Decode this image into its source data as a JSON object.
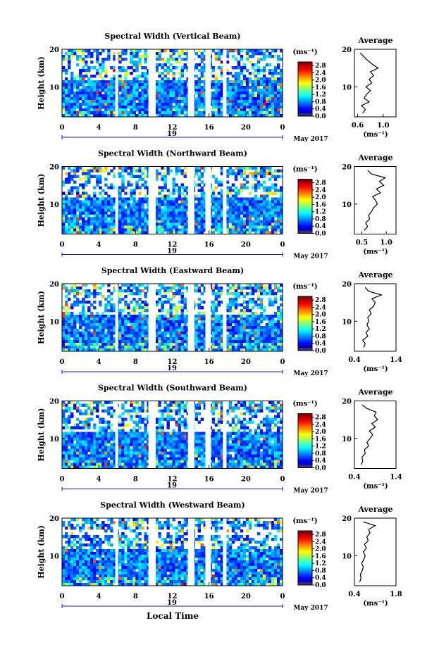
{
  "figure": {
    "ylabel": "Height (km)",
    "xlabel": "Local Time",
    "date_label": "May 2017",
    "colorbar_unit": "(ms⁻¹)",
    "avg_title": "Average",
    "avg_xlabel": "(ms⁻¹)",
    "day_label": "19"
  },
  "chart_data": [
    {
      "type": "heatmap",
      "title": "Spectral Width (Vertical Beam)",
      "x_ticks": [
        "0",
        "4",
        "8",
        "12",
        "16",
        "20",
        "0"
      ],
      "y_ticks": [
        "20",
        "10"
      ],
      "xlim": [
        0,
        24
      ],
      "ylim": [
        2,
        20
      ],
      "colorbar_ticks": [
        "2.8",
        "2.4",
        "2.0",
        "1.6",
        "1.2",
        "0.8",
        "0.4",
        "0.0"
      ],
      "colorbar_range": [
        0,
        3.0
      ],
      "gaps_hours": [
        [
          5.8,
          6.1
        ],
        [
          9.4,
          10.2
        ],
        [
          13.7,
          14.4
        ],
        [
          15.6,
          16.2
        ],
        [
          17.5,
          17.9
        ]
      ],
      "avg_profile": {
        "type": "line",
        "x_ticks": [
          "0.6",
          "1.0"
        ],
        "xlim": [
          0.55,
          1.2
        ],
        "heights": [
          3,
          4,
          5,
          6,
          7,
          8,
          9,
          10,
          11,
          12,
          13,
          14,
          15,
          16,
          17,
          18,
          19
        ],
        "values": [
          0.68,
          0.72,
          0.66,
          0.78,
          0.7,
          0.74,
          0.8,
          0.73,
          0.82,
          0.78,
          0.85,
          0.8,
          0.92,
          0.83,
          0.76,
          0.7,
          0.64
        ]
      }
    },
    {
      "type": "heatmap",
      "title": "Spectral Width (Northward Beam)",
      "x_ticks": [
        "0",
        "4",
        "8",
        "12",
        "16",
        "20",
        "0"
      ],
      "y_ticks": [
        "20",
        "10"
      ],
      "xlim": [
        0,
        24
      ],
      "ylim": [
        2,
        20
      ],
      "colorbar_ticks": [
        "2.8",
        "2.4",
        "2.0",
        "1.6",
        "1.2",
        "0.8",
        "0.4",
        "0.0"
      ],
      "colorbar_range": [
        0,
        3.0
      ],
      "gaps_hours": [
        [
          5.8,
          6.1
        ],
        [
          9.4,
          10.2
        ],
        [
          13.7,
          14.4
        ],
        [
          15.6,
          16.2
        ],
        [
          17.5,
          17.9
        ]
      ],
      "avg_profile": {
        "type": "line",
        "x_ticks": [
          "0.5",
          "1.0"
        ],
        "xlim": [
          0.35,
          1.2
        ],
        "heights": [
          3,
          4,
          5,
          6,
          7,
          8,
          9,
          10,
          11,
          12,
          13,
          14,
          15,
          16,
          17,
          18,
          19
        ],
        "values": [
          0.55,
          0.62,
          0.58,
          0.66,
          0.64,
          0.7,
          0.74,
          0.82,
          0.78,
          0.72,
          0.88,
          0.8,
          0.95,
          0.86,
          0.98,
          0.7,
          0.62
        ]
      }
    },
    {
      "type": "heatmap",
      "title": "Spectral Width (Eastward Beam)",
      "x_ticks": [
        "0",
        "4",
        "8",
        "12",
        "16",
        "20",
        "0"
      ],
      "y_ticks": [
        "20",
        "10"
      ],
      "xlim": [
        0,
        24
      ],
      "ylim": [
        2,
        20
      ],
      "colorbar_ticks": [
        "2.8",
        "2.4",
        "2.0",
        "1.6",
        "1.2",
        "0.8",
        "0.4",
        "0.0"
      ],
      "colorbar_range": [
        0,
        3.0
      ],
      "gaps_hours": [
        [
          5.8,
          6.1
        ],
        [
          9.4,
          10.2
        ],
        [
          13.7,
          14.4
        ],
        [
          15.6,
          16.2
        ],
        [
          17.5,
          17.9
        ]
      ],
      "avg_profile": {
        "type": "line",
        "x_ticks": [
          "0.4",
          "1.4"
        ],
        "xlim": [
          0.4,
          1.4
        ],
        "heights": [
          3,
          4,
          5,
          6,
          7,
          8,
          9,
          10,
          11,
          12,
          13,
          14,
          15,
          16,
          17,
          18,
          19
        ],
        "values": [
          0.62,
          0.66,
          0.6,
          0.72,
          0.68,
          0.76,
          0.7,
          0.74,
          0.72,
          0.8,
          0.76,
          0.86,
          0.9,
          0.82,
          1.05,
          0.74,
          0.66
        ]
      }
    },
    {
      "type": "heatmap",
      "title": "Spectral Width (Southward Beam)",
      "x_ticks": [
        "0",
        "4",
        "8",
        "12",
        "16",
        "20",
        "0"
      ],
      "y_ticks": [
        "20",
        "10"
      ],
      "xlim": [
        0,
        24
      ],
      "ylim": [
        2,
        20
      ],
      "colorbar_ticks": [
        "2.8",
        "2.4",
        "2.0",
        "1.6",
        "1.2",
        "0.8",
        "0.4",
        "0.0"
      ],
      "colorbar_range": [
        0,
        3.0
      ],
      "gaps_hours": [
        [
          5.8,
          6.1
        ],
        [
          9.4,
          10.2
        ],
        [
          13.7,
          14.4
        ],
        [
          15.6,
          16.2
        ],
        [
          17.5,
          17.9
        ]
      ],
      "avg_profile": {
        "type": "line",
        "x_ticks": [
          "0.4",
          "1.4"
        ],
        "xlim": [
          0.4,
          1.4
        ],
        "heights": [
          3,
          4,
          5,
          6,
          7,
          8,
          9,
          10,
          11,
          12,
          13,
          14,
          15,
          16,
          17,
          18,
          19
        ],
        "values": [
          0.56,
          0.6,
          0.58,
          0.66,
          0.64,
          0.74,
          0.7,
          0.78,
          0.84,
          0.76,
          0.9,
          0.82,
          0.96,
          0.88,
          0.92,
          0.7,
          0.58
        ]
      }
    },
    {
      "type": "heatmap",
      "title": "Spectral Width (Westward Beam)",
      "x_ticks": [
        "0",
        "4",
        "8",
        "12",
        "16",
        "20",
        "0"
      ],
      "y_ticks": [
        "20",
        "10"
      ],
      "xlim": [
        0,
        24
      ],
      "ylim": [
        2,
        20
      ],
      "colorbar_ticks": [
        "2.8",
        "2.4",
        "2.0",
        "1.6",
        "1.2",
        "0.8",
        "0.4",
        "0.0"
      ],
      "colorbar_range": [
        0,
        3.0
      ],
      "gaps_hours": [
        [
          5.8,
          6.1
        ],
        [
          9.4,
          10.2
        ],
        [
          13.7,
          14.4
        ],
        [
          15.6,
          16.2
        ],
        [
          17.5,
          17.9
        ]
      ],
      "avg_profile": {
        "type": "line",
        "x_ticks": [
          "0.4",
          "1.8"
        ],
        "xlim": [
          0.4,
          1.8
        ],
        "heights": [
          3,
          4,
          5,
          6,
          7,
          8,
          9,
          10,
          11,
          12,
          13,
          14,
          15,
          16,
          17,
          18,
          19
        ],
        "values": [
          0.58,
          0.62,
          0.6,
          0.66,
          0.7,
          0.64,
          0.72,
          0.76,
          0.7,
          0.8,
          0.74,
          0.86,
          0.82,
          0.92,
          0.88,
          1.1,
          0.7
        ]
      }
    }
  ]
}
